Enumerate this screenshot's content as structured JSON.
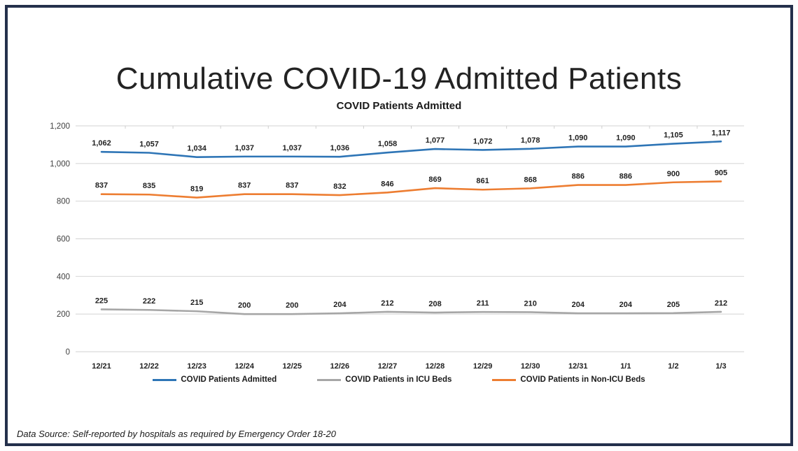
{
  "title": "Cumulative COVID-19 Admitted Patients",
  "footer": "Data Source: Self-reported by hospitals as required by Emergency Order 18-20",
  "colors": {
    "frame_border": "#232f4b",
    "gridline": "#d9d9d9",
    "axis_text": "#404040",
    "data_label_text": "#1f1f1f"
  },
  "chart_data": {
    "type": "line",
    "title": "COVID Patients Admitted",
    "categories": [
      "12/21",
      "12/22",
      "12/23",
      "12/24",
      "12/25",
      "12/26",
      "12/27",
      "12/28",
      "12/29",
      "12/30",
      "12/31",
      "1/1",
      "1/2",
      "1/3"
    ],
    "series": [
      {
        "name": "COVID Patients Admitted",
        "color": "#2E75B6",
        "values": [
          1062,
          1057,
          1034,
          1037,
          1037,
          1036,
          1058,
          1077,
          1072,
          1078,
          1090,
          1090,
          1105,
          1117
        ]
      },
      {
        "name": "COVID Patients in ICU Beds",
        "color": "#A6A6A6",
        "values": [
          225,
          222,
          215,
          200,
          200,
          204,
          212,
          208,
          211,
          210,
          204,
          204,
          205,
          212
        ]
      },
      {
        "name": "COVID Patients in Non-ICU Beds",
        "color": "#ED7D31",
        "values": [
          837,
          835,
          819,
          837,
          837,
          832,
          846,
          869,
          861,
          868,
          886,
          886,
          900,
          905
        ]
      }
    ],
    "ylim": [
      0,
      1200
    ],
    "yticks": [
      0,
      200,
      400,
      600,
      800,
      1000,
      1200
    ],
    "ytick_labels": [
      "0",
      "200",
      "400",
      "600",
      "800",
      "1,000",
      "1,200"
    ],
    "grid": true,
    "legend_position": "bottom",
    "data_labels": true
  }
}
